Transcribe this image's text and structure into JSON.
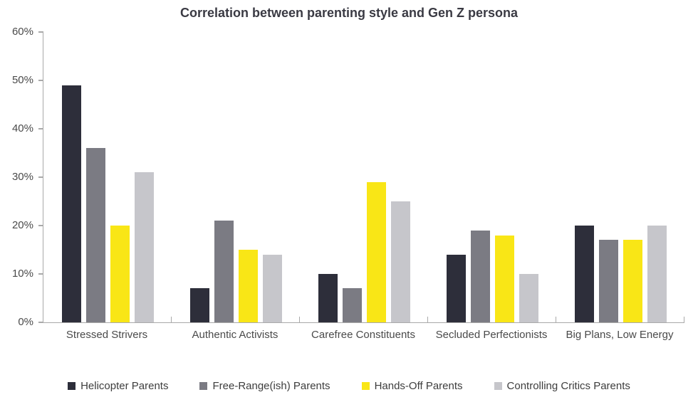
{
  "chart_data": {
    "type": "bar",
    "title": "Correlation between parenting style and Gen Z persona",
    "categories": [
      "Stressed Strivers",
      "Authentic Activists",
      "Carefree Constituents",
      "Secluded Perfectionists",
      "Big Plans, Low Energy"
    ],
    "series": [
      {
        "name": "Helicopter Parents",
        "color": "#2d2e3a",
        "values": [
          49,
          7,
          10,
          14,
          20
        ]
      },
      {
        "name": "Free-Range(ish) Parents",
        "color": "#7b7b83",
        "values": [
          36,
          21,
          7,
          19,
          17
        ]
      },
      {
        "name": "Hands-Off Parents",
        "color": "#f9e616",
        "values": [
          20,
          15,
          29,
          18,
          17
        ]
      },
      {
        "name": "Controlling Critics Parents",
        "color": "#c6c6cb",
        "values": [
          31,
          14,
          25,
          10,
          20
        ]
      }
    ],
    "xlabel": "",
    "ylabel": "",
    "ylim": [
      0,
      60
    ],
    "y_ticks": [
      "0%",
      "10%",
      "20%",
      "30%",
      "40%",
      "50%",
      "60%"
    ],
    "grid": "off",
    "legend_position": "bottom"
  },
  "colors": {
    "axis": "#a9a9a9",
    "tick_label": "#4a4a4a",
    "title_text": "#3a3a43",
    "legend_text": "#3d3d3d",
    "background": "#ffffff"
  }
}
